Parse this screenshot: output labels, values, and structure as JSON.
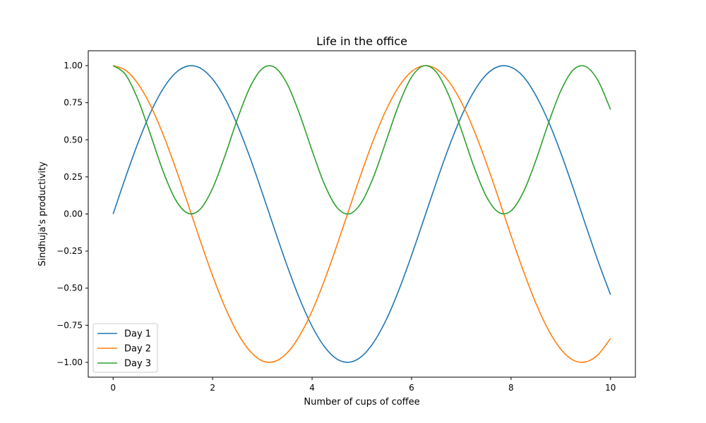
{
  "chart_data": {
    "type": "line",
    "title": "Life in the office",
    "xlabel": "Number of cups of coffee",
    "ylabel": "Sindhuja's productivity",
    "xlim": [
      -0.5,
      10.5
    ],
    "ylim": [
      -1.1,
      1.1
    ],
    "xticks": [
      0,
      2,
      4,
      6,
      8,
      10
    ],
    "xtick_labels": [
      "0",
      "2",
      "4",
      "6",
      "8",
      "10"
    ],
    "yticks": [
      -1.0,
      -0.75,
      -0.5,
      -0.25,
      0.0,
      0.25,
      0.5,
      0.75,
      1.0
    ],
    "ytick_labels": [
      "−1.00",
      "−0.75",
      "−0.50",
      "−0.25",
      "0.00",
      "0.25",
      "0.50",
      "0.75",
      "1.00"
    ],
    "grid": false,
    "legend_position": "lower-left",
    "x": [
      0,
      0.25,
      0.5,
      0.75,
      1,
      1.25,
      1.5,
      1.75,
      2,
      2.25,
      2.5,
      2.75,
      3,
      3.25,
      3.5,
      3.75,
      4,
      4.25,
      4.5,
      4.75,
      5,
      5.25,
      5.5,
      5.75,
      6,
      6.25,
      6.5,
      6.75,
      7,
      7.25,
      7.5,
      7.75,
      8,
      8.25,
      8.5,
      8.75,
      9,
      9.25,
      9.5,
      9.75,
      10
    ],
    "series": [
      {
        "name": "Day 1",
        "color": "#1f77b4",
        "values": [
          0,
          0.247,
          0.479,
          0.682,
          0.841,
          0.949,
          0.997,
          0.984,
          0.909,
          0.778,
          0.598,
          0.382,
          0.141,
          -0.108,
          -0.351,
          -0.572,
          -0.757,
          -0.895,
          -0.978,
          -0.999,
          -0.959,
          -0.859,
          -0.706,
          -0.508,
          -0.279,
          -0.033,
          0.215,
          0.45,
          0.657,
          0.823,
          0.938,
          0.994,
          0.989,
          0.925,
          0.798,
          0.625,
          0.412,
          0.174,
          -0.075,
          -0.319,
          -0.544
        ]
      },
      {
        "name": "Day 2",
        "color": "#ff7f0e",
        "values": [
          1,
          0.969,
          0.878,
          0.732,
          0.54,
          0.315,
          0.071,
          -0.178,
          -0.416,
          -0.628,
          -0.801,
          -0.924,
          -0.99,
          -0.994,
          -0.936,
          -0.82,
          -0.654,
          -0.446,
          -0.211,
          0.038,
          0.284,
          0.513,
          0.709,
          0.861,
          0.96,
          0.999,
          0.977,
          0.893,
          0.754,
          0.568,
          0.347,
          0.105,
          -0.146,
          -0.386,
          -0.602,
          -0.781,
          -0.911,
          -0.985,
          -0.997,
          -0.948,
          -0.839
        ]
      },
      {
        "name": "Day 3",
        "color": "#2ca02c",
        "values": [
          1,
          0.939,
          0.771,
          0.536,
          0.292,
          0.099,
          0.005,
          0.032,
          0.173,
          0.394,
          0.641,
          0.853,
          0.98,
          0.988,
          0.876,
          0.672,
          0.427,
          0.199,
          0.044,
          0.001,
          0.081,
          0.263,
          0.503,
          0.742,
          0.922,
          0.999,
          0.955,
          0.798,
          0.568,
          0.322,
          0.12,
          0.011,
          0.021,
          0.149,
          0.362,
          0.61,
          0.83,
          0.971,
          0.994,
          0.898,
          0.704
        ]
      }
    ]
  }
}
